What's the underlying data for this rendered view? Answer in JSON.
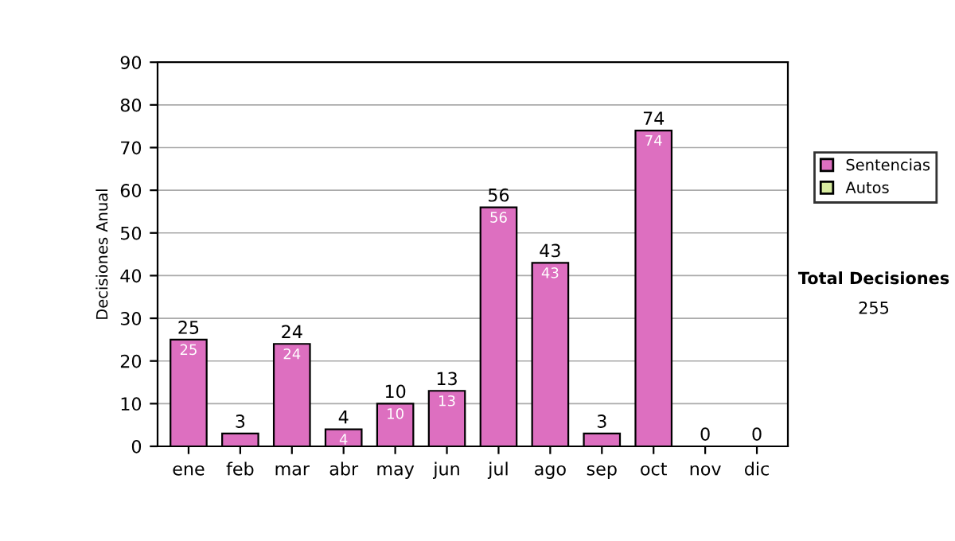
{
  "chart_data": {
    "type": "bar",
    "stacked": true,
    "ylabel": "Decisiones Anual",
    "categories": [
      "ene",
      "feb",
      "mar",
      "abr",
      "may",
      "jun",
      "jul",
      "ago",
      "sep",
      "oct",
      "nov",
      "dic"
    ],
    "series": [
      {
        "name": "Sentencias",
        "color": "#dd6fc0",
        "values": [
          25,
          3,
          24,
          4,
          10,
          13,
          56,
          43,
          3,
          74,
          0,
          0
        ],
        "value_labels": [
          "25",
          null,
          "24",
          "4",
          "10",
          "13",
          "56",
          "43",
          null,
          "74",
          null,
          null
        ]
      },
      {
        "name": "Autos",
        "color": "#d8eca0",
        "values": [
          0,
          0,
          0,
          0,
          0,
          0,
          0,
          0,
          0,
          0,
          0,
          0
        ]
      }
    ],
    "totals": [
      "25",
      "3",
      "24",
      "4",
      "10",
      "13",
      "56",
      "43",
      "3",
      "74",
      "0",
      "0"
    ],
    "ylim": [
      0,
      90
    ],
    "yticks": [
      0,
      10,
      20,
      30,
      40,
      50,
      60,
      70,
      80,
      90
    ],
    "grid": "y",
    "legend": "right",
    "annotations": [
      "Total Decisiones",
      "255"
    ]
  }
}
